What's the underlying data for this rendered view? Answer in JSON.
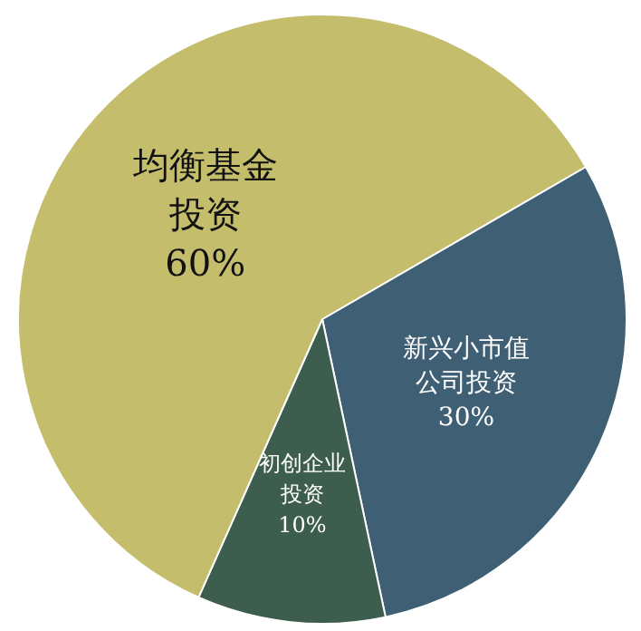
{
  "chart_data": {
    "type": "pie",
    "categories": [
      "新兴小市值公司投资",
      "初创企业投资",
      "均衡基金投资"
    ],
    "values": [
      30,
      10,
      60
    ],
    "value_labels": [
      "30%",
      "10%",
      "60%"
    ],
    "colors": [
      "#3f5f74",
      "#3d5e4e",
      "#c4bd6c"
    ]
  }
}
